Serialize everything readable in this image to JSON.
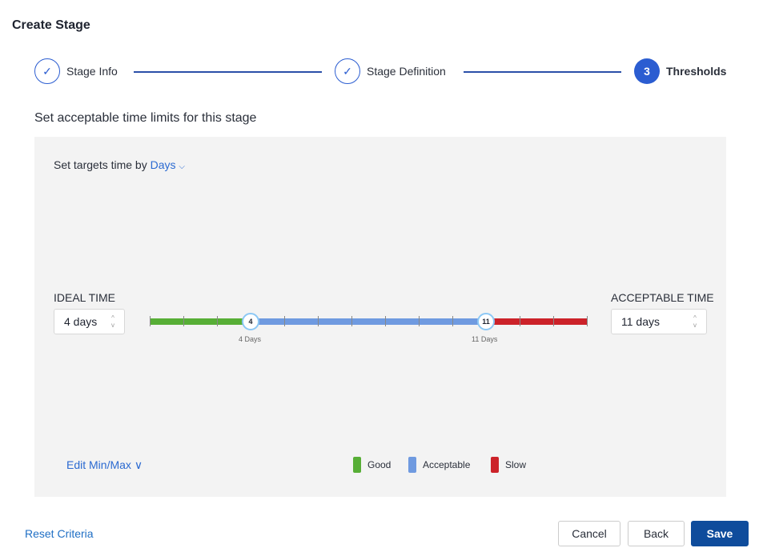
{
  "title": "Create Stage",
  "steps": [
    {
      "label": "Stage Info",
      "state": "done"
    },
    {
      "label": "Stage Definition",
      "state": "done"
    },
    {
      "label": "Thresholds",
      "number": "3",
      "state": "active"
    }
  ],
  "subtitle": "Set acceptable time limits for this stage",
  "targets": {
    "prefix": "Set targets time by",
    "unit": "Days"
  },
  "ideal": {
    "label": "IDEAL TIME",
    "value": "4 days"
  },
  "acceptable": {
    "label": "ACCEPTABLE TIME",
    "value": "11 days"
  },
  "slider": {
    "min": 1,
    "max": 14,
    "ideal": 4,
    "acceptable": 11,
    "ideal_thumb": "4",
    "acceptable_thumb": "11",
    "ideal_caption": "4 Days",
    "acceptable_caption": "11 Days"
  },
  "edit_minmax": "Edit Min/Max",
  "legend": [
    {
      "label": "Good",
      "color": "#57ae36"
    },
    {
      "label": "Acceptable",
      "color": "#6f9ae0"
    },
    {
      "label": "Slow",
      "color": "#cc2229"
    }
  ],
  "footer": {
    "reset": "Reset Criteria",
    "cancel": "Cancel",
    "back": "Back",
    "save": "Save"
  }
}
